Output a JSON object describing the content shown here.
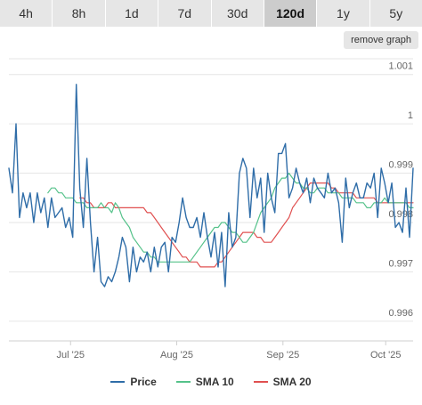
{
  "range_tabs": [
    {
      "label": "4h",
      "active": false
    },
    {
      "label": "8h",
      "active": false
    },
    {
      "label": "1d",
      "active": false
    },
    {
      "label": "7d",
      "active": false
    },
    {
      "label": "30d",
      "active": false
    },
    {
      "label": "120d",
      "active": true
    },
    {
      "label": "1y",
      "active": false
    },
    {
      "label": "5y",
      "active": false
    }
  ],
  "remove_graph_label": "remove graph",
  "colors": {
    "price": "#2f6da8",
    "sma10": "#55c28a",
    "sma20": "#e05050",
    "grid": "#e6e6e6",
    "tab_bg": "#e6e6e6",
    "tab_active_bg": "#cccccc"
  },
  "legend": [
    {
      "label": "Price",
      "color": "#2f6da8",
      "icon": "line-swatch"
    },
    {
      "label": "SMA 10",
      "color": "#55c28a",
      "icon": "line-swatch"
    },
    {
      "label": "SMA 20",
      "color": "#e05050",
      "icon": "line-swatch"
    }
  ],
  "chart_data": {
    "type": "line",
    "title": "",
    "xlabel": "",
    "ylabel": "",
    "y_ticks": [
      "0.996",
      "0.997",
      "0.998",
      "0.999",
      "1",
      "1.001"
    ],
    "ylim": [
      0.9956,
      1.0015
    ],
    "grid": true,
    "legend_position": "bottom",
    "x_tick_labels": [
      {
        "label": "Jul '25",
        "date": "2025-07-01"
      },
      {
        "label": "Aug '25",
        "date": "2025-08-01"
      },
      {
        "label": "Sep '25",
        "date": "2025-09-01"
      },
      {
        "label": "Oct '25",
        "date": "2025-10-01"
      }
    ],
    "x_start": "2025-06-13",
    "x_end": "2025-10-09",
    "series": [
      {
        "name": "Price",
        "values": [
          0.9991,
          0.9986,
          1.0,
          0.9981,
          0.9986,
          0.9983,
          0.9986,
          0.998,
          0.9986,
          0.9982,
          0.9985,
          0.9979,
          0.9985,
          0.9981,
          0.9982,
          0.9983,
          0.9979,
          0.9981,
          0.9977,
          1.0008,
          0.9987,
          0.9979,
          0.9993,
          0.998,
          0.997,
          0.9977,
          0.9968,
          0.9967,
          0.9969,
          0.9968,
          0.997,
          0.9973,
          0.9977,
          0.9975,
          0.9968,
          0.9975,
          0.997,
          0.9973,
          0.9972,
          0.9974,
          0.997,
          0.9975,
          0.9971,
          0.9975,
          0.9976,
          0.997,
          0.9977,
          0.9976,
          0.998,
          0.9985,
          0.9981,
          0.9979,
          0.9979,
          0.9981,
          0.9977,
          0.9982,
          0.9977,
          0.9973,
          0.9978,
          0.9971,
          0.9978,
          0.9967,
          0.9982,
          0.9975,
          0.9977,
          0.999,
          0.9993,
          0.9991,
          0.9981,
          0.9991,
          0.9985,
          0.9989,
          0.9978,
          0.999,
          0.9985,
          0.9982,
          0.9994,
          0.9994,
          0.9996,
          0.9985,
          0.9987,
          0.9991,
          0.9988,
          0.9986,
          0.9989,
          0.9984,
          0.9989,
          0.9987,
          0.9986,
          0.9985,
          0.999,
          0.9986,
          0.9987,
          0.9984,
          0.9976,
          0.9989,
          0.9983,
          0.9986,
          0.9988,
          0.9985,
          0.9985,
          0.9988,
          0.9987,
          0.999,
          0.9981,
          0.9991,
          0.9988,
          0.9984,
          0.9988,
          0.9979,
          0.998,
          0.9978,
          0.9987,
          0.9977,
          0.9991
        ]
      },
      {
        "name": "SMA 10",
        "values": [
          0.9986,
          0.9987,
          0.9987,
          0.9986,
          0.9986,
          0.9985,
          0.9985,
          0.9985,
          0.9984,
          0.9984,
          0.9984,
          0.9983,
          0.9983,
          0.9983,
          0.9983,
          0.9984,
          0.9983,
          0.9983,
          0.9982,
          0.9984,
          0.9983,
          0.9981,
          0.998,
          0.9979,
          0.9977,
          0.9976,
          0.9975,
          0.9974,
          0.9974,
          0.9973,
          0.9973,
          0.9972,
          0.9972,
          0.9972,
          0.9972,
          0.9972,
          0.9972,
          0.9972,
          0.9972,
          0.9972,
          0.9972,
          0.9973,
          0.9974,
          0.9975,
          0.9976,
          0.9977,
          0.9978,
          0.9979,
          0.9979,
          0.998,
          0.998,
          0.9979,
          0.9978,
          0.9978,
          0.9977,
          0.9976,
          0.9976,
          0.9977,
          0.9978,
          0.998,
          0.9982,
          0.9983,
          0.9984,
          0.9985,
          0.9987,
          0.9988,
          0.9989,
          0.9989,
          0.999,
          0.9989,
          0.9988,
          0.9988,
          0.9987,
          0.9987,
          0.9986,
          0.9986,
          0.9987,
          0.9987,
          0.9987,
          0.9986,
          0.9986,
          0.9986,
          0.9986,
          0.9985,
          0.9985,
          0.9985,
          0.9985,
          0.9984,
          0.9984,
          0.9984,
          0.9983,
          0.9983,
          0.9984,
          0.9984,
          0.9984,
          0.9985,
          0.9984,
          0.9984,
          0.9984,
          0.9984,
          0.9984,
          0.9984,
          0.9983,
          0.9983
        ]
      },
      {
        "name": "SMA 20",
        "values": [
          0.9985,
          0.9985,
          0.9984,
          0.9984,
          0.9983,
          0.9983,
          0.9983,
          0.9983,
          0.9984,
          0.9984,
          0.9983,
          0.9983,
          0.9983,
          0.9983,
          0.9983,
          0.9983,
          0.9983,
          0.9983,
          0.9983,
          0.9982,
          0.9982,
          0.9981,
          0.998,
          0.9979,
          0.9978,
          0.9977,
          0.9976,
          0.9975,
          0.9974,
          0.9973,
          0.9973,
          0.9972,
          0.9972,
          0.9972,
          0.9971,
          0.9971,
          0.9971,
          0.9971,
          0.9971,
          0.9972,
          0.9972,
          0.9973,
          0.9974,
          0.9975,
          0.9976,
          0.9977,
          0.9978,
          0.9978,
          0.9978,
          0.9978,
          0.9977,
          0.9977,
          0.9976,
          0.9976,
          0.9976,
          0.9977,
          0.9978,
          0.9979,
          0.998,
          0.9981,
          0.9983,
          0.9984,
          0.9985,
          0.9986,
          0.9987,
          0.9988,
          0.9988,
          0.9988,
          0.9988,
          0.9988,
          0.9988,
          0.9987,
          0.9987,
          0.9986,
          0.9986,
          0.9986,
          0.9986,
          0.9986,
          0.9985,
          0.9985,
          0.9985,
          0.9985,
          0.9985,
          0.9985,
          0.9984,
          0.9984,
          0.9984,
          0.9984,
          0.9984,
          0.9984,
          0.9984,
          0.9984,
          0.9984,
          0.9984,
          0.9984
        ]
      }
    ]
  }
}
